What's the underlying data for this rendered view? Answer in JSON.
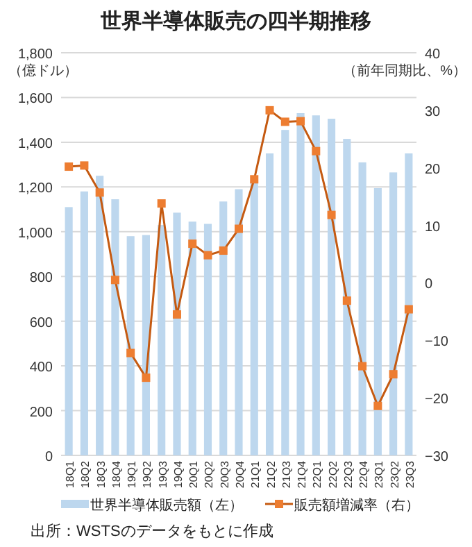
{
  "chart_data": {
    "type": "bar",
    "title": "世界半導体販売の四半期推移",
    "ylabel": "（億ドル）",
    "y2label": "（前年同期比、%）",
    "categories": [
      "18Q1",
      "18Q2",
      "18Q3",
      "18Q4",
      "19Q1",
      "19Q2",
      "19Q3",
      "19Q4",
      "20Q1",
      "20Q2",
      "20Q3",
      "20Q4",
      "21Q1",
      "21Q2",
      "21Q3",
      "21Q4",
      "22Q1",
      "22Q2",
      "22Q3",
      "22Q4",
      "23Q1",
      "23Q2",
      "23Q3"
    ],
    "series": [
      {
        "name": "世界半導体販売額（左）",
        "color": "#bdd7ee",
        "values": [
          1110,
          1180,
          1250,
          1145,
          980,
          985,
          1030,
          1085,
          1045,
          1035,
          1135,
          1190,
          1230,
          1350,
          1455,
          1530,
          1520,
          1505,
          1415,
          1310,
          1195,
          1265,
          1350
        ]
      },
      {
        "name": "販売額増減率（右）",
        "type": "line",
        "axis": "y2",
        "color": "#c55a11",
        "marker": "square",
        "values": [
          20.2,
          20.4,
          15.7,
          0.5,
          -12.2,
          -16.5,
          13.8,
          -5.5,
          6.8,
          4.8,
          5.6,
          9.4,
          18.0,
          30.0,
          28.0,
          28.1,
          22.9,
          11.8,
          -3.1,
          -14.5,
          -21.4,
          -15.9,
          -4.6
        ]
      }
    ],
    "ylim": [
      0,
      1800
    ],
    "yticks": [
      0,
      {
        "value": 200,
        "label": "200"
      },
      {
        "value": 400,
        "label": "400"
      },
      {
        "value": 600,
        "label": "600"
      },
      {
        "value": 800,
        "label": "800"
      },
      {
        "value": 1000,
        "label": "1,000"
      },
      {
        "value": 1200,
        "label": "1,200"
      },
      {
        "value": 1400,
        "label": "1,400"
      },
      {
        "value": 1600,
        "label": "1,600"
      },
      {
        "value": 1800,
        "label": "1,800"
      }
    ],
    "y2lim": [
      -30,
      40
    ],
    "y2ticks": [
      -30,
      -20,
      -10,
      0,
      10,
      20,
      30,
      40
    ],
    "grid": "y",
    "legend": "bottom",
    "annotations": [
      "出所：WSTSのデータをもとに作成"
    ]
  }
}
